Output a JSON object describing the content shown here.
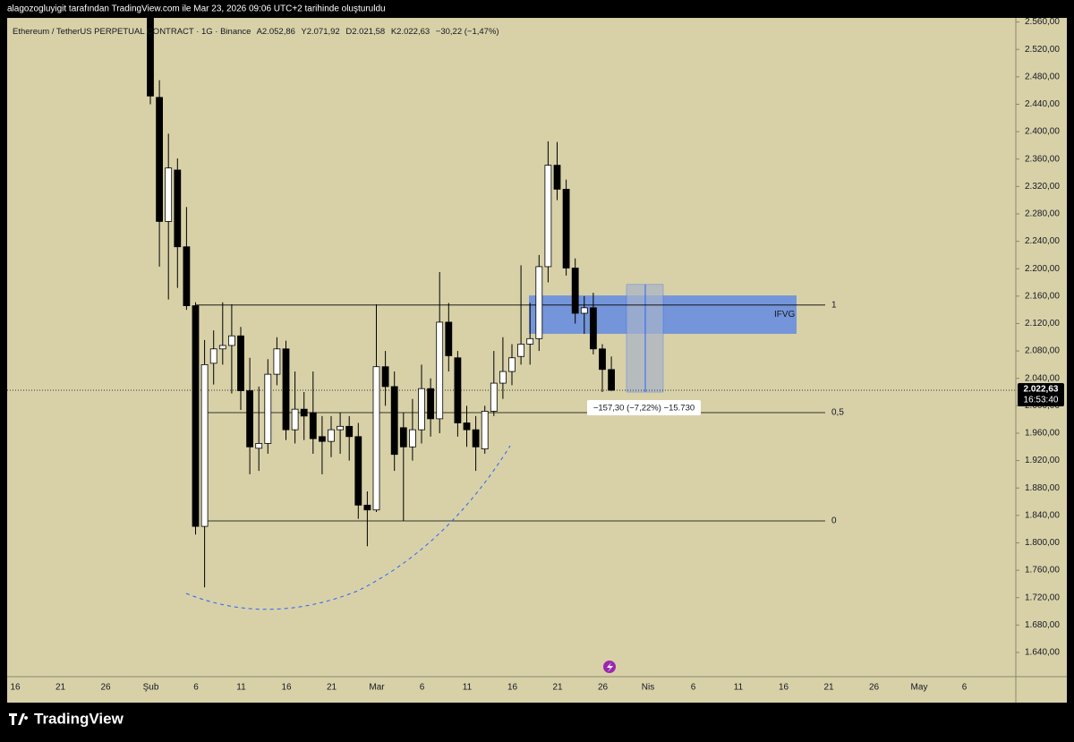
{
  "page_header": "alagozogluyigit tarafından TradingView.com ile Mar 23, 2026 09:06 UTC+2 tarihinde oluşturuldu",
  "footer_logo": "TradingView",
  "chart_data": {
    "type": "candlestick",
    "legend": {
      "symbol": "Ethereum / TetherUS PERPETUAL CONTRACT · 1G · Binance",
      "open": "A2.052,86",
      "high": "Y2.071,92",
      "low": "D2.021,58",
      "close": "K2.022,63",
      "change": "−30,22 (−1,47%)"
    },
    "open": [
      2600,
      2450,
      2269,
      2344,
      2232,
      2146,
      1824,
      2062,
      2083,
      2088,
      2102,
      2022,
      1938,
      1945,
      2046,
      2083,
      1965,
      1995,
      1990,
      1955,
      1948,
      1965,
      1970,
      1955,
      1855,
      1848,
      2057,
      2028,
      1968,
      1940,
      1965,
      2025,
      1981,
      2122,
      2070,
      1975,
      1965,
      1937,
      1992,
      2033,
      2050,
      2072,
      2090,
      2098,
      2203,
      2351,
      2316,
      2201,
      2135,
      2143,
      2083,
      2052.86
    ],
    "high": [
      2650,
      2475,
      2397,
      2361,
      2290,
      2151,
      2096,
      2110,
      2151,
      2148,
      2115,
      2070,
      2028,
      2068,
      2100,
      2095,
      2050,
      2020,
      2050,
      1985,
      1985,
      1990,
      1985,
      1975,
      1875,
      2148,
      2080,
      2050,
      1990,
      2010,
      2060,
      2040,
      2195,
      2150,
      2080,
      2000,
      1985,
      2000,
      2080,
      2100,
      2090,
      2205,
      2150,
      2220,
      2386,
      2385,
      2330,
      2215,
      2160,
      2165,
      2090,
      2071.92
    ],
    "low": [
      2440,
      2203,
      2155,
      2172,
      2140,
      1812,
      1735,
      2031,
      2060,
      2018,
      1994,
      1900,
      1905,
      1930,
      2030,
      1950,
      1945,
      1950,
      1930,
      1900,
      1925,
      1930,
      1920,
      1835,
      1795,
      1845,
      2000,
      1905,
      1832,
      1920,
      1945,
      1955,
      1960,
      2050,
      1955,
      1940,
      1905,
      1930,
      1985,
      2010,
      2030,
      2060,
      2060,
      2080,
      2180,
      2300,
      2190,
      2120,
      2105,
      2075,
      2020,
      2021.58
    ],
    "close": [
      2452,
      2269,
      2347,
      2232,
      2146,
      1824,
      2060,
      2083,
      2088,
      2102,
      2022,
      1940,
      1945,
      2046,
      2083,
      1965,
      1995,
      1985,
      1952,
      1948,
      1965,
      1970,
      1955,
      1855,
      1848,
      2057,
      2028,
      1929,
      1940,
      1965,
      2025,
      1981,
      2122,
      2073,
      1975,
      1965,
      1940,
      1992,
      2033,
      2050,
      2070,
      2090,
      2098,
      2203,
      2351,
      2316,
      2201,
      2135,
      2143,
      2083,
      2053,
      2022.63
    ],
    "up_color": "#ffffff",
    "down_color": "#000000",
    "ylim": [
      1606,
      2566
    ],
    "yticks": [
      {
        "value": 2560,
        "label": "2.560,00"
      },
      {
        "value": 2520,
        "label": "2.520,00"
      },
      {
        "value": 2480,
        "label": "2.480,00"
      },
      {
        "value": 2440,
        "label": "2.440,00"
      },
      {
        "value": 2400,
        "label": "2.400,00"
      },
      {
        "value": 2360,
        "label": "2.360,00"
      },
      {
        "value": 2320,
        "label": "2.320,00"
      },
      {
        "value": 2280,
        "label": "2.280,00"
      },
      {
        "value": 2240,
        "label": "2.240,00"
      },
      {
        "value": 2200,
        "label": "2.200,00"
      },
      {
        "value": 2160,
        "label": "2.160,00"
      },
      {
        "value": 2120,
        "label": "2.120,00"
      },
      {
        "value": 2080,
        "label": "2.080,00"
      },
      {
        "value": 2040,
        "label": "2.040,00"
      },
      {
        "value": 2000,
        "label": "2.000,00"
      },
      {
        "value": 1960,
        "label": "1.960,00"
      },
      {
        "value": 1920,
        "label": "1.920,00"
      },
      {
        "value": 1880,
        "label": "1.880,00"
      },
      {
        "value": 1840,
        "label": "1.840,00"
      },
      {
        "value": 1800,
        "label": "1.800,00"
      },
      {
        "value": 1760,
        "label": "1.760,00"
      },
      {
        "value": 1720,
        "label": "1.720,00"
      },
      {
        "value": 1680,
        "label": "1.680,00"
      },
      {
        "value": 1640,
        "label": "1.640,00"
      }
    ],
    "xticks": [
      "16",
      "21",
      "26",
      "Şub",
      "6",
      "11",
      "16",
      "21",
      "Mar",
      "6",
      "11",
      "16",
      "21",
      "26",
      "Nis",
      "6",
      "11",
      "16",
      "21",
      "26",
      "May",
      "6"
    ],
    "last_price": {
      "value": 2022.63,
      "label": "2.022,63",
      "countdown": "16:53:40"
    },
    "levels": [
      {
        "value": 2147,
        "label": "1"
      },
      {
        "value": 1990,
        "label": "0,5"
      },
      {
        "value": 1832,
        "label": "0"
      }
    ],
    "zone": {
      "top": 2161,
      "bottom": 2105,
      "label": "IFVG"
    },
    "measure": {
      "top": 2177,
      "bottom": 2020,
      "label": "−157,30 (−7,22%) −15.730"
    }
  }
}
